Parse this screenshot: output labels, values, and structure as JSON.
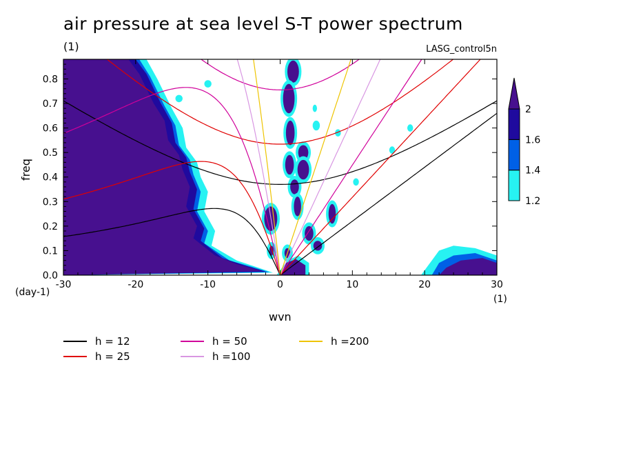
{
  "chart_data": {
    "type": "heatmap",
    "title": "air pressure at sea level S-T power spectrum",
    "subtitle": "(1)",
    "model_label": "LASG_control5n",
    "xlabel": "wvn",
    "ylabel": "freq",
    "x_unit": "(1)",
    "y_unit": "(day-1)",
    "xlim": [
      -30,
      30
    ],
    "ylim": [
      0,
      0.88
    ],
    "x_ticks": [
      "-30",
      "-20",
      "-10",
      "0",
      "10",
      "20",
      "30"
    ],
    "y_ticks": [
      "0.0",
      "0.1",
      "0.2",
      "0.3",
      "0.4",
      "0.5",
      "0.6",
      "0.7",
      "0.8"
    ],
    "colorbar": {
      "levels": [
        "1.2",
        "1.4",
        "1.6",
        "2"
      ],
      "colors": [
        "#27f2f2",
        "#0060e6",
        "#1f0a9e",
        "#47108f"
      ]
    },
    "dispersion_curves": [
      {
        "label": "h = 12",
        "h": 12,
        "color": "#000000"
      },
      {
        "label": "h = 25",
        "h": 25,
        "color": "#e00000"
      },
      {
        "label": "h = 50",
        "h": 50,
        "color": "#d0009a"
      },
      {
        "label": "h =100",
        "h": 100,
        "color": "#d896e2"
      },
      {
        "label": "h =200",
        "h": 200,
        "color": "#eec400"
      }
    ]
  }
}
